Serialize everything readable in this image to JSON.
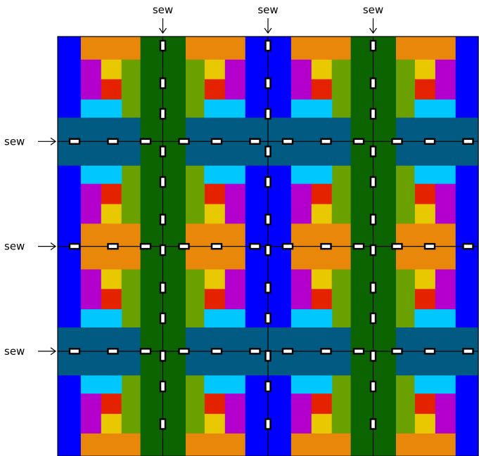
{
  "labels": {
    "top": [
      "sew",
      "sew",
      "sew"
    ],
    "left": [
      "sew",
      "sew",
      "sew"
    ]
  },
  "colors": {
    "blue": "#0000ff",
    "orange": "#e8870a",
    "olive": "#6aa000",
    "magenta": "#b300cc",
    "yellow": "#e8c800",
    "red": "#e52200",
    "cyan": "#00c8ff",
    "teal": "#005a82",
    "dark_green": "#0b6400",
    "line": "#000000",
    "stitch_fill": "#ffffff"
  },
  "grid": {
    "rows": 4,
    "cols": 4
  }
}
